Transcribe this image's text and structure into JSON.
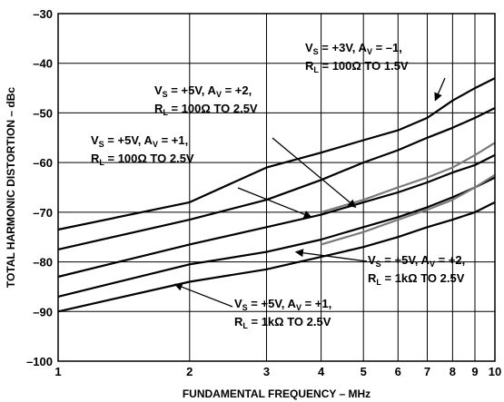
{
  "chart_data": {
    "type": "line",
    "xlabel": "FUNDAMENTAL FREQUENCY – MHz",
    "ylabel": "TOTAL HARMONIC DISTORTION – dBc",
    "xscale": "log",
    "xlim": [
      1,
      10
    ],
    "ylim": [
      -100,
      -30
    ],
    "xticks": [
      1,
      2,
      3,
      4,
      5,
      6,
      7,
      8,
      9,
      10
    ],
    "xtick_labels": [
      "1",
      "2",
      "3",
      "4",
      "5",
      "6",
      "7",
      "8",
      "9",
      "10"
    ],
    "yticks": [
      -30,
      -40,
      -50,
      -60,
      -70,
      -80,
      -90,
      -100
    ],
    "ytick_labels": [
      "–30",
      "–40",
      "–50",
      "–60",
      "–70",
      "–80",
      "–90",
      "–100"
    ],
    "grid": true,
    "series": [
      {
        "color": "#000000",
        "points": [
          [
            1,
            -73.5
          ],
          [
            2,
            -68
          ],
          [
            3,
            -61
          ],
          [
            4,
            -58
          ],
          [
            5,
            -55.5
          ],
          [
            6,
            -53.5
          ],
          [
            7,
            -51
          ],
          [
            8,
            -47.5
          ],
          [
            9,
            -45
          ],
          [
            10,
            -43
          ]
        ]
      },
      {
        "color": "#000000",
        "points": [
          [
            1,
            -77.5
          ],
          [
            2,
            -71.5
          ],
          [
            3,
            -67.5
          ],
          [
            4,
            -63.5
          ],
          [
            5,
            -60
          ],
          [
            6,
            -57.5
          ],
          [
            7,
            -55
          ],
          [
            8,
            -53
          ],
          [
            9,
            -51
          ],
          [
            10,
            -49
          ]
        ]
      },
      {
        "color": "#000000",
        "points": [
          [
            1,
            -83
          ],
          [
            2,
            -76.5
          ],
          [
            3,
            -73
          ],
          [
            4,
            -70.5
          ],
          [
            5,
            -68
          ],
          [
            6,
            -66
          ],
          [
            7,
            -64
          ],
          [
            8,
            -62
          ],
          [
            9,
            -60.5
          ],
          [
            10,
            -58.5
          ]
        ]
      },
      {
        "color": "#000000",
        "points": [
          [
            1,
            -87
          ],
          [
            2,
            -80.5
          ],
          [
            3,
            -78
          ],
          [
            4,
            -75.5
          ],
          [
            5,
            -73
          ],
          [
            6,
            -71
          ],
          [
            7,
            -69
          ],
          [
            8,
            -67
          ],
          [
            9,
            -65
          ],
          [
            10,
            -63
          ]
        ]
      },
      {
        "color": "#000000",
        "points": [
          [
            1,
            -90
          ],
          [
            2,
            -84
          ],
          [
            3,
            -81.5
          ],
          [
            4,
            -79
          ],
          [
            5,
            -77
          ],
          [
            6,
            -75
          ],
          [
            7,
            -73
          ],
          [
            8,
            -71.5
          ],
          [
            9,
            -70
          ],
          [
            10,
            -68
          ]
        ]
      },
      {
        "color": "#7a7a7a",
        "points": [
          [
            4,
            -70
          ],
          [
            5,
            -67.5
          ],
          [
            6,
            -65
          ],
          [
            7,
            -63
          ],
          [
            8,
            -61
          ],
          [
            9,
            -58.5
          ],
          [
            10,
            -56
          ]
        ]
      },
      {
        "color": "#7a7a7a",
        "points": [
          [
            4,
            -76.5
          ],
          [
            5,
            -74
          ],
          [
            6,
            -71.5
          ],
          [
            7,
            -69.5
          ],
          [
            8,
            -67.5
          ],
          [
            9,
            -65
          ],
          [
            10,
            -62.5
          ]
        ]
      }
    ],
    "annotations": [
      {
        "line1": "V",
        "s1": "S",
        "t1": " = +3V, A",
        "s2": "V",
        "t2": " = –1,",
        "line2": "R",
        "s3": "L",
        "t3": " = 100Ω TO 1.5V",
        "arrow_to": [
          7.3,
          -47.5
        ]
      },
      {
        "line1": "V",
        "s1": "S",
        "t1": " = +5V, A",
        "s2": "V",
        "t2": " = +2,",
        "line2": "R",
        "s3": "L",
        "t3": " = 100Ω TO 2.5V",
        "arrow_to": [
          4.8,
          -69
        ]
      },
      {
        "line1": "V",
        "s1": "S",
        "t1": " = +5V, A",
        "s2": "V",
        "t2": " = +1,",
        "line2": "R",
        "s3": "L",
        "t3": " = 100Ω TO 2.5V",
        "arrow_to": [
          3.8,
          -71
        ]
      },
      {
        "line1": "V",
        "s1": "S",
        "t1": " = +5V, A",
        "s2": "V",
        "t2": " = +2,",
        "line2": "R",
        "s3": "L",
        "t3": " = 1kΩ TO 2.5V",
        "arrow_to": [
          3.5,
          -78
        ]
      },
      {
        "line1": "V",
        "s1": "S",
        "t1": " = +5V, A",
        "s2": "V",
        "t2": " = +1,",
        "line2": "R",
        "s3": "L",
        "t3": " = 1kΩ TO 2.5V",
        "arrow_to": [
          1.85,
          -84.5
        ]
      }
    ]
  }
}
